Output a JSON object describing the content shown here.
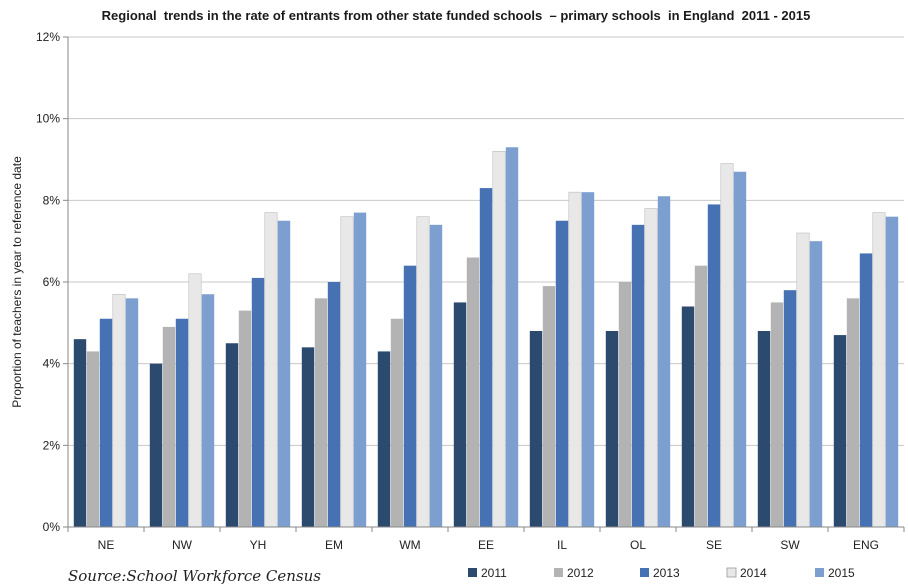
{
  "chart_data": {
    "type": "bar",
    "title": "Regional  trends in the rate of entrants from other state funded schools  – primary schools  in England  2011 - 2015",
    "ylabel": "Proportion of teachers in year to reference date",
    "xlabel": "",
    "ylim": [
      0,
      12
    ],
    "yticks": [
      0,
      2,
      4,
      6,
      8,
      10,
      12
    ],
    "ytick_labels": [
      "0%",
      "2%",
      "4%",
      "6%",
      "8%",
      "10%",
      "12%"
    ],
    "grid": true,
    "legend_position": "bottom-right",
    "categories": [
      "NE",
      "NW",
      "YH",
      "EM",
      "WM",
      "EE",
      "IL",
      "OL",
      "SE",
      "SW",
      "ENG"
    ],
    "series": [
      {
        "name": "2011",
        "color": "#2c4a6e",
        "values": [
          4.6,
          4.0,
          4.5,
          4.4,
          4.3,
          5.5,
          4.8,
          4.8,
          5.4,
          4.8,
          4.7
        ]
      },
      {
        "name": "2012",
        "color": "#b3b3b3",
        "values": [
          4.3,
          4.9,
          5.3,
          5.6,
          5.1,
          6.6,
          5.9,
          6.0,
          6.4,
          5.5,
          5.6
        ]
      },
      {
        "name": "2013",
        "color": "#4672b4",
        "values": [
          5.1,
          5.1,
          6.1,
          6.0,
          6.4,
          8.3,
          7.5,
          7.4,
          7.9,
          5.8,
          6.7
        ]
      },
      {
        "name": "2014",
        "color": "#e8e8e8",
        "values": [
          5.7,
          6.2,
          7.7,
          7.6,
          7.6,
          9.2,
          8.2,
          7.8,
          8.9,
          7.2,
          7.7
        ]
      },
      {
        "name": "2015",
        "color": "#7d9fd0",
        "values": [
          5.6,
          5.7,
          7.5,
          7.7,
          7.4,
          9.3,
          8.2,
          8.1,
          8.7,
          7.0,
          7.6
        ]
      }
    ],
    "source": "Source:School Workforce Census"
  }
}
